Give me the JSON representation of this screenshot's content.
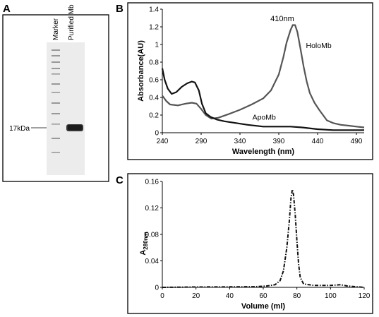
{
  "panels": {
    "a": {
      "letter": "A",
      "lane_labels": [
        "Marker",
        "Purified Mb"
      ],
      "size_marker": "17kDa"
    },
    "b": {
      "letter": "B",
      "peak_annotation": "410nm"
    },
    "c": {
      "letter": "C",
      "ylabel_main": "A",
      "ylabel_sub": "280nm"
    }
  },
  "chart_data": [
    {
      "panel": "B",
      "type": "line",
      "xlabel": "Wavelength (nm)",
      "ylabel": "Absorbance(AU)",
      "xlim": [
        240,
        500
      ],
      "ylim": [
        0,
        1.4
      ],
      "xticks": [
        240,
        290,
        340,
        390,
        440,
        490
      ],
      "yticks": [
        0,
        0.2,
        0.4,
        0.6,
        0.8,
        1,
        1.2,
        1.4
      ],
      "grid": false,
      "legend": "none",
      "series": [
        {
          "name": "HoloMb",
          "color": "#555555",
          "points": [
            [
              240,
              0.42
            ],
            [
              245,
              0.36
            ],
            [
              250,
              0.32
            ],
            [
              260,
              0.31
            ],
            [
              270,
              0.33
            ],
            [
              278,
              0.34
            ],
            [
              284,
              0.33
            ],
            [
              290,
              0.27
            ],
            [
              296,
              0.2
            ],
            [
              303,
              0.16
            ],
            [
              312,
              0.17
            ],
            [
              325,
              0.21
            ],
            [
              340,
              0.26
            ],
            [
              355,
              0.32
            ],
            [
              370,
              0.39
            ],
            [
              380,
              0.48
            ],
            [
              390,
              0.66
            ],
            [
              396,
              0.86
            ],
            [
              400,
              1.02
            ],
            [
              405,
              1.16
            ],
            [
              408,
              1.22
            ],
            [
              411,
              1.22
            ],
            [
              414,
              1.14
            ],
            [
              418,
              0.95
            ],
            [
              422,
              0.75
            ],
            [
              426,
              0.58
            ],
            [
              430,
              0.45
            ],
            [
              436,
              0.34
            ],
            [
              442,
              0.26
            ],
            [
              447,
              0.2
            ],
            [
              452,
              0.14
            ],
            [
              460,
              0.11
            ],
            [
              470,
              0.09
            ],
            [
              480,
              0.08
            ],
            [
              490,
              0.07
            ],
            [
              500,
              0.06
            ]
          ]
        },
        {
          "name": "ApoMb",
          "color": "#111111",
          "points": [
            [
              240,
              0.73
            ],
            [
              243,
              0.6
            ],
            [
              247,
              0.5
            ],
            [
              252,
              0.44
            ],
            [
              258,
              0.46
            ],
            [
              265,
              0.52
            ],
            [
              272,
              0.56
            ],
            [
              278,
              0.58
            ],
            [
              282,
              0.57
            ],
            [
              287,
              0.48
            ],
            [
              291,
              0.33
            ],
            [
              296,
              0.22
            ],
            [
              302,
              0.18
            ],
            [
              310,
              0.15
            ],
            [
              320,
              0.13
            ],
            [
              335,
              0.11
            ],
            [
              350,
              0.09
            ],
            [
              370,
              0.07
            ],
            [
              390,
              0.07
            ],
            [
              405,
              0.07
            ],
            [
              420,
              0.06
            ],
            [
              440,
              0.04
            ],
            [
              460,
              0.03
            ],
            [
              480,
              0.03
            ],
            [
              500,
              0.03
            ]
          ]
        }
      ]
    },
    {
      "panel": "C",
      "type": "line",
      "xlabel": "Volume (ml)",
      "ylabel": "A280nm",
      "xlim": [
        0,
        120
      ],
      "ylim": [
        0,
        0.16
      ],
      "xticks": [
        0,
        20,
        40,
        60,
        80,
        100,
        120
      ],
      "yticks": [
        0,
        0.04,
        0.08,
        0.12,
        0.16
      ],
      "grid": false,
      "legend": "none",
      "series": [
        {
          "name": "",
          "color": "#111111",
          "points": [
            [
              0,
              0.0
            ],
            [
              20,
              0.0005
            ],
            [
              40,
              0.0008
            ],
            [
              55,
              0.001
            ],
            [
              62,
              0.002
            ],
            [
              67,
              0.004
            ],
            [
              70,
              0.01
            ],
            [
              72,
              0.025
            ],
            [
              74,
              0.06
            ],
            [
              75.5,
              0.1
            ],
            [
              76.5,
              0.135
            ],
            [
              77.3,
              0.148
            ],
            [
              78,
              0.14
            ],
            [
              79,
              0.11
            ],
            [
              80,
              0.07
            ],
            [
              81,
              0.035
            ],
            [
              82,
              0.015
            ],
            [
              84,
              0.005
            ],
            [
              90,
              0.003
            ],
            [
              100,
              0.003
            ],
            [
              106,
              0.004
            ],
            [
              110,
              0.002
            ],
            [
              120,
              0.0
            ]
          ]
        }
      ]
    }
  ]
}
